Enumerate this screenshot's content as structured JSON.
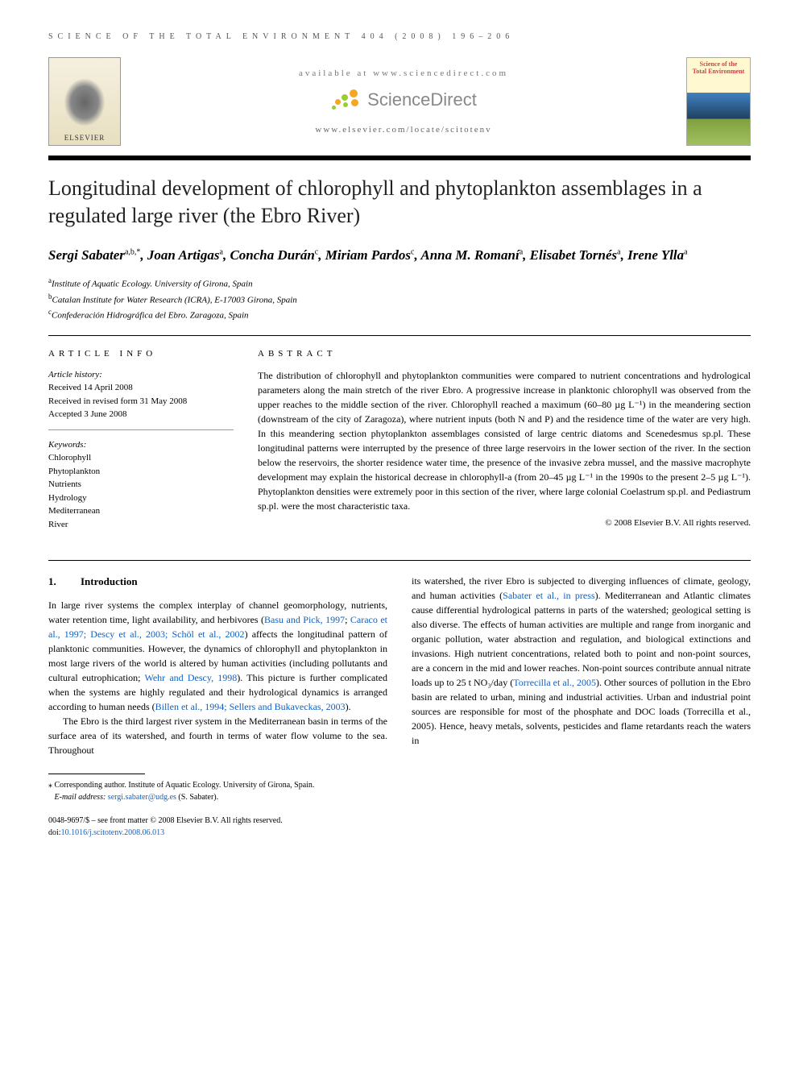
{
  "header": {
    "running_head": "SCIENCE OF THE TOTAL ENVIRONMENT 404 (2008) 196–206"
  },
  "banner": {
    "available_at": "available at www.sciencedirect.com",
    "sd_brand": "ScienceDirect",
    "journal_url": "www.elsevier.com/locate/scitotenv",
    "elsevier_label": "ELSEVIER",
    "journal_cover_line1": "Science of the",
    "journal_cover_line2": "Total Environment",
    "sd_dot_colors": [
      "#f5a623",
      "#9acd32",
      "#f5a623",
      "#9acd32",
      "#f5a623",
      "#9acd32"
    ]
  },
  "article": {
    "title": "Longitudinal development of chlorophyll and phytoplankton assemblages in a regulated large river (the Ebro River)",
    "authors_html": "Sergi Sabater<sup>a,b,*</sup>, Joan Artigas<sup>a</sup>, Concha Durán<sup>c</sup>, Miriam Pardos<sup>c</sup>, Anna M. Romaní<sup>a</sup>, Elisabet Tornés<sup>a</sup>, Irene Ylla<sup>a</sup>",
    "affiliations": [
      {
        "sup": "a",
        "text": "Institute of Aquatic Ecology. University of Girona, Spain"
      },
      {
        "sup": "b",
        "text": "Catalan Institute for Water Research (ICRA), E-17003 Girona, Spain"
      },
      {
        "sup": "c",
        "text": "Confederación Hidrográfica del Ebro. Zaragoza, Spain"
      }
    ]
  },
  "article_info": {
    "label": "ARTICLE INFO",
    "history_label": "Article history:",
    "history": [
      "Received 14 April 2008",
      "Received in revised form 31 May 2008",
      "Accepted 3 June 2008"
    ],
    "keywords_label": "Keywords:",
    "keywords": [
      "Chlorophyll",
      "Phytoplankton",
      "Nutrients",
      "Hydrology",
      "Mediterranean",
      "River"
    ]
  },
  "abstract": {
    "label": "ABSTRACT",
    "text": "The distribution of chlorophyll and phytoplankton communities were compared to nutrient concentrations and hydrological parameters along the main stretch of the river Ebro. A progressive increase in planktonic chlorophyll was observed from the upper reaches to the middle section of the river. Chlorophyll reached a maximum (60–80 µg L⁻¹) in the meandering section (downstream of the city of Zaragoza), where nutrient inputs (both N and P) and the residence time of the water are very high. In this meandering section phytoplankton assemblages consisted of large centric diatoms and Scenedesmus sp.pl. These longitudinal patterns were interrupted by the presence of three large reservoirs in the lower section of the river. In the section below the reservoirs, the shorter residence water time, the presence of the invasive zebra mussel, and the massive macrophyte development may explain the historical decrease in chlorophyll-a (from 20–45 µg L⁻¹ in the 1990s to the present 2–5 µg L⁻¹). Phytoplankton densities were extremely poor in this section of the river, where large colonial Coelastrum sp.pl. and Pediastrum sp.pl. were the most characteristic taxa.",
    "copyright": "© 2008 Elsevier B.V. All rights reserved."
  },
  "body": {
    "section_number": "1.",
    "section_title": "Introduction",
    "col1_p1": "In large river systems the complex interplay of channel geomorphology, nutrients, water retention time, light availability, and herbivores (Basu and Pick, 1997; Caraco et al., 1997; Descy et al., 2003; Schöl et al., 2002) affects the longitudinal pattern of planktonic communities. However, the dynamics of chlorophyll and phytoplankton in most large rivers of the world is altered by human activities (including pollutants and cultural eutrophication; Wehr and Descy, 1998). This picture is further complicated when the systems are highly regulated and their hydrological dynamics is arranged according to human needs (Billen et al., 1994; Sellers and Bukaveckas, 2003).",
    "col1_p2": "The Ebro is the third largest river system in the Mediterranean basin in terms of the surface area of its watershed, and fourth in terms of water flow volume to the sea. Throughout",
    "col2_p1": "its watershed, the river Ebro is subjected to diverging influences of climate, geology, and human activities (Sabater et al., in press). Mediterranean and Atlantic climates cause differential hydrological patterns in parts of the watershed; geological setting is also diverse. The effects of human activities are multiple and range from inorganic and organic pollution, water abstraction and regulation, and biological extinctions and invasions. High nutrient concentrations, related both to point and non-point sources, are a concern in the mid and lower reaches. Non-point sources contribute annual nitrate loads up to 25 t NO₃/day (Torrecilla et al., 2005). Other sources of pollution in the Ebro basin are related to urban, mining and industrial activities. Urban and industrial point sources are responsible for most of the phosphate and DOC loads (Torrecilla et al., 2005). Hence, heavy metals, solvents, pesticides and flame retardants reach the waters in",
    "refs_col1": [
      "Basu and Pick, 1997",
      "Caraco et al., 1997; Descy et al., 2003; Schöl et al., 2002",
      "Wehr and Descy, 1998",
      "Billen et al., 1994; Sellers and Bukaveckas, 2003"
    ],
    "refs_col2": [
      "Sabater et al., in press",
      "Torrecilla et al., 2005",
      "Torrecilla et al., 2005"
    ]
  },
  "footnotes": {
    "corresponding": "⁎ Corresponding author. Institute of Aquatic Ecology. University of Girona, Spain.",
    "email_label": "E-mail address:",
    "email": "sergi.sabater@udg.es",
    "email_name": "(S. Sabater)."
  },
  "bottom": {
    "issn_line": "0048-9697/$ – see front matter © 2008 Elsevier B.V. All rights reserved.",
    "doi_label": "doi:",
    "doi": "10.1016/j.scitotenv.2008.06.013"
  },
  "colors": {
    "link": "#1060c0",
    "rule": "#000000",
    "text": "#000000"
  }
}
